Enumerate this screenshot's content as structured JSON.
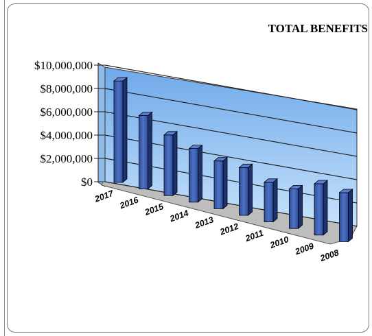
{
  "chart_data": {
    "type": "bar",
    "title": "TOTAL BENEFITS",
    "categories": [
      "2017",
      "2016",
      "2015",
      "2014",
      "2013",
      "2012",
      "2011",
      "2010",
      "2009",
      "2008"
    ],
    "values": [
      8700000,
      6300000,
      5200000,
      4600000,
      4100000,
      4100000,
      3400000,
      3400000,
      4400000,
      4200000
    ],
    "y_tick_labels": [
      "$0",
      "$2,000,000",
      "$4,000,000",
      "$6,000,000",
      "$8,000,000",
      "$10,000,000"
    ],
    "y_ticks": [
      0,
      2000000,
      4000000,
      6000000,
      8000000,
      10000000
    ],
    "ylim": [
      0,
      10000000
    ],
    "grid": true,
    "style": "3d-column",
    "colors": {
      "bar_front": "#3d5fb0",
      "bar_side": "#1c3270",
      "bar_top": "#5a7dd0",
      "wall": "#a9d0f5",
      "floor": "#b8b8b8"
    }
  }
}
